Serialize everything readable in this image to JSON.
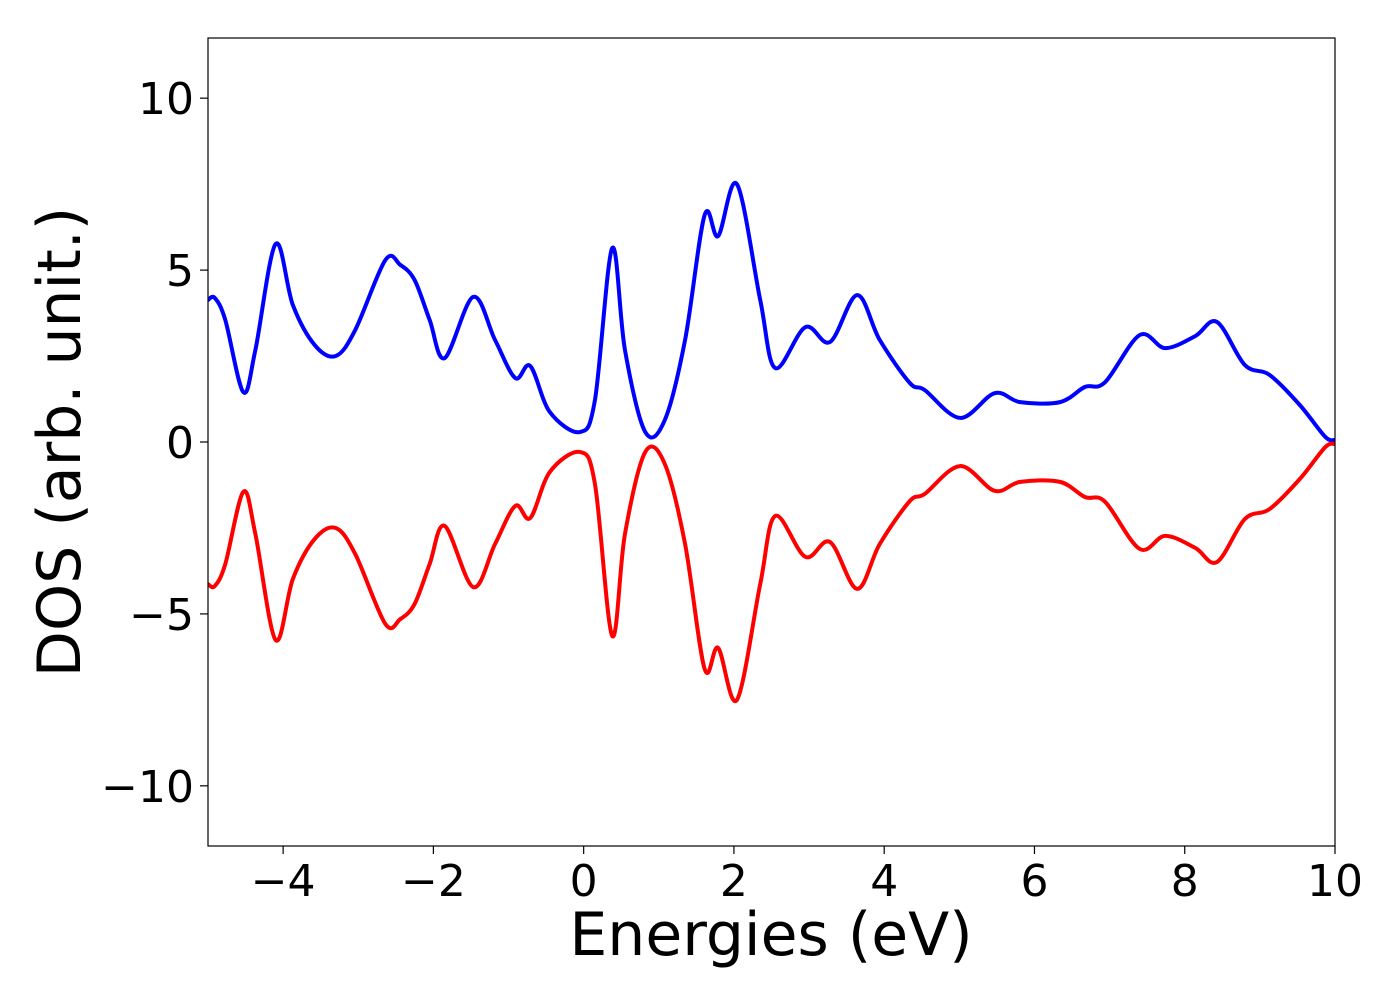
{
  "chart_data": {
    "type": "line",
    "xlabel": "Energies (eV)",
    "ylabel": "DOS (arb. unit.)",
    "x": [
      -5,
      -4.91,
      -4.77,
      -4.53,
      -4.37,
      -4.1,
      -3.87,
      -3.58,
      -3.3,
      -3.04,
      -2.64,
      -2.44,
      -2.25,
      -2.05,
      -1.85,
      -1.47,
      -1.18,
      -0.91,
      -0.71,
      -0.45,
      -0.05,
      0.15,
      0.38,
      0.55,
      0.82,
      1.08,
      1.35,
      1.61,
      1.79,
      2.04,
      2.35,
      2.55,
      2.95,
      3.28,
      3.64,
      3.94,
      4.34,
      4.54,
      5.01,
      5.47,
      5.81,
      6.34,
      6.67,
      6.94,
      7.4,
      7.74,
      8.14,
      8.43,
      8.8,
      9.13,
      9.53,
      9.87,
      10
    ],
    "series": [
      {
        "color": "#0000ff",
        "values": [
          4.13,
          4.19,
          3.55,
          1.45,
          2.67,
          5.76,
          3.98,
          2.82,
          2.5,
          3.26,
          5.29,
          5.15,
          4.71,
          3.55,
          2.44,
          4.22,
          2.97,
          1.86,
          2.21,
          0.87,
          0.29,
          1.22,
          5.64,
          2.67,
          0.29,
          0.64,
          2.97,
          6.6,
          5.99,
          7.5,
          4.13,
          2.15,
          3.34,
          2.91,
          4.27,
          2.97,
          1.72,
          1.51,
          0.7,
          1.42,
          1.16,
          1.16,
          1.6,
          1.74,
          3.11,
          2.73,
          3.08,
          3.49,
          2.24,
          1.95,
          1.08,
          0.15,
          0.06
        ]
      },
      {
        "color": "#ff0000",
        "values": [
          -4.13,
          -4.19,
          -3.55,
          -1.45,
          -2.67,
          -5.76,
          -3.98,
          -2.82,
          -2.5,
          -3.26,
          -5.29,
          -5.15,
          -4.71,
          -3.55,
          -2.44,
          -4.22,
          -2.97,
          -1.86,
          -2.21,
          -0.87,
          -0.29,
          -1.22,
          -5.64,
          -2.67,
          -0.29,
          -0.64,
          -2.97,
          -6.6,
          -5.99,
          -7.5,
          -4.13,
          -2.15,
          -3.34,
          -2.91,
          -4.27,
          -2.97,
          -1.72,
          -1.51,
          -0.7,
          -1.42,
          -1.16,
          -1.16,
          -1.6,
          -1.74,
          -3.11,
          -2.73,
          -3.08,
          -3.49,
          -2.24,
          -1.95,
          -1.08,
          -0.15,
          -0.06
        ]
      }
    ],
    "xlim": [
      -5,
      10
    ],
    "xticks": [
      {
        "value": -4,
        "label": "−4"
      },
      {
        "value": -2,
        "label": "−2"
      },
      0,
      2,
      4,
      6,
      8,
      10
    ],
    "ylim": [
      -11.75,
      11.75
    ],
    "yticks": [
      {
        "value": -10,
        "label": "−10"
      },
      {
        "value": -5,
        "label": "−5"
      },
      0,
      5,
      10
    ],
    "grid": false
  }
}
